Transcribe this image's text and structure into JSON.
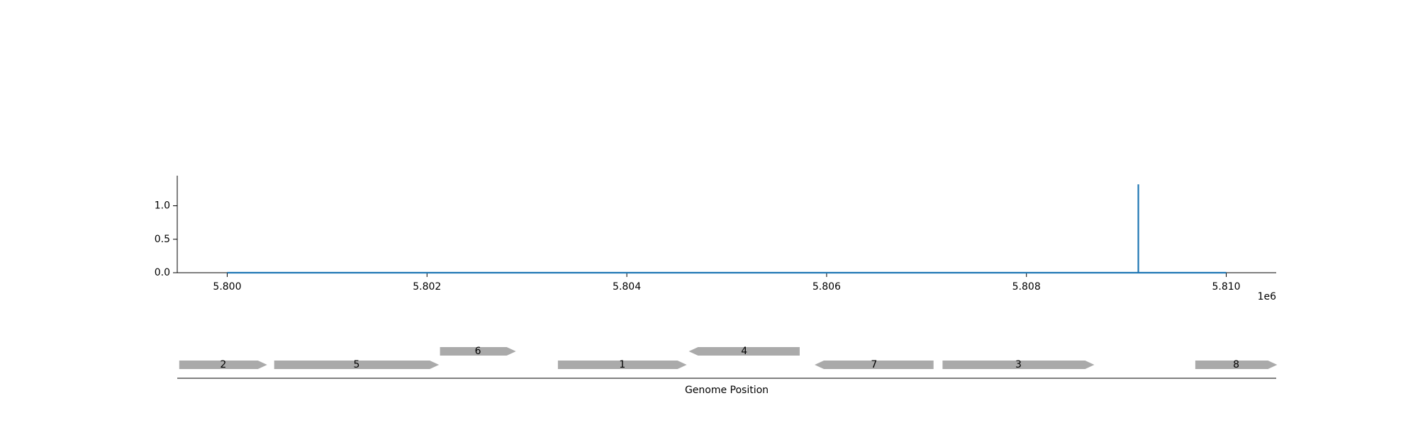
{
  "chart_data": [
    {
      "type": "line",
      "title": "",
      "xlabel": "",
      "ylabel": "",
      "x_offset_label": "1e6",
      "xlim": [
        5.7995,
        5.8105
      ],
      "ylim": [
        0,
        1.45
      ],
      "x_ticks": [
        5.8,
        5.802,
        5.804,
        5.806,
        5.808,
        5.81
      ],
      "x_tick_labels": [
        "5.800",
        "5.802",
        "5.804",
        "5.806",
        "5.808",
        "5.810"
      ],
      "y_ticks": [
        0.0,
        0.5,
        1.0
      ],
      "y_tick_labels": [
        "0.0",
        "0.5",
        "1.0"
      ],
      "grid": false,
      "series": [
        {
          "color": "#1f77b4",
          "x": [
            5.8,
            5.80912,
            5.80912,
            5.80912,
            5.81
          ],
          "y": [
            0.0,
            0.0,
            1.32,
            0.0,
            0.0
          ]
        }
      ]
    },
    {
      "type": "gene_track",
      "xlabel": "Genome Position",
      "xlim": [
        5.7995,
        5.8105
      ],
      "feature_color": "#aaaaaa",
      "genes": [
        {
          "label": "2",
          "start": 5.79952,
          "end": 5.8004,
          "strand": "+",
          "row": 0
        },
        {
          "label": "5",
          "start": 5.80047,
          "end": 5.80212,
          "strand": "+",
          "row": 0
        },
        {
          "label": "6",
          "start": 5.80213,
          "end": 5.80289,
          "strand": "+",
          "row": 1
        },
        {
          "label": "1",
          "start": 5.80331,
          "end": 5.8046,
          "strand": "+",
          "row": 0
        },
        {
          "label": "4",
          "start": 5.80462,
          "end": 5.80573,
          "strand": "-",
          "row": 1
        },
        {
          "label": "7",
          "start": 5.80588,
          "end": 5.80707,
          "strand": "-",
          "row": 0
        },
        {
          "label": "3",
          "start": 5.80716,
          "end": 5.80868,
          "strand": "+",
          "row": 0
        },
        {
          "label": "8",
          "start": 5.80969,
          "end": 5.81051,
          "strand": "+",
          "row": 0
        }
      ]
    }
  ]
}
